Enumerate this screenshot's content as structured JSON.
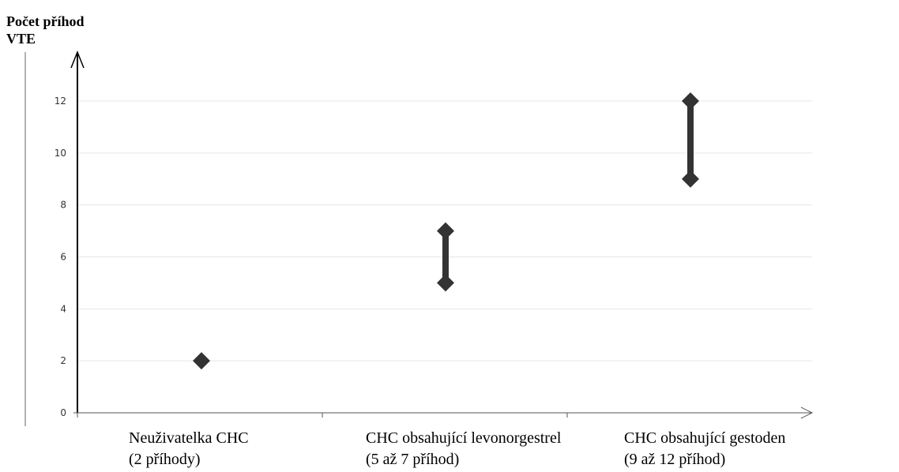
{
  "chart_data": {
    "type": "scatter",
    "ylabel_lines": [
      "Počet příhod",
      "VTE"
    ],
    "ylim": [
      0,
      13
    ],
    "yticks": [
      0,
      2,
      4,
      6,
      8,
      10,
      12
    ],
    "grid": true,
    "categories": [
      {
        "name": "Neuživatelka CHC",
        "note": "(2 příhody)",
        "low": 2,
        "high": 2
      },
      {
        "name": "CHC obsahující levonorgestrel",
        "note": "(5 až 7 příhod)",
        "low": 5,
        "high": 7
      },
      {
        "name": "CHC obsahující gestoden",
        "note": "(9 až 12 příhod)",
        "low": 9,
        "high": 12
      }
    ],
    "colors": {
      "marker": "#333333",
      "grid": "#e6e6e6",
      "axis": "#000000"
    }
  }
}
